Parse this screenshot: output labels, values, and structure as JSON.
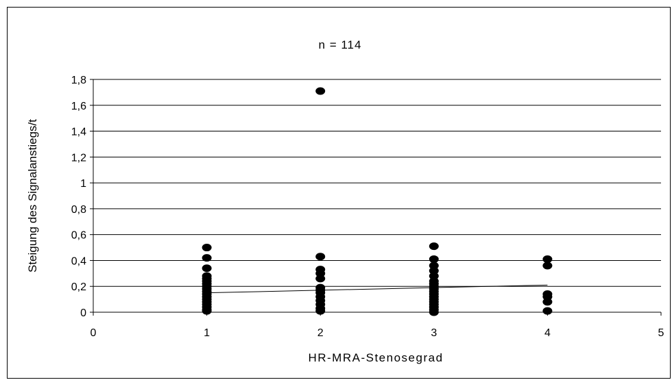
{
  "chart_data": {
    "type": "scatter",
    "title": "n = 114",
    "xlabel": "HR-MRA-Stenosegrad",
    "ylabel": "Steigung des Signalanstiegs/t",
    "xlim": [
      0,
      5
    ],
    "ylim": [
      0,
      1.8
    ],
    "x_ticks": [
      "0",
      "1",
      "2",
      "3",
      "4",
      "5"
    ],
    "y_ticks": [
      "0",
      "0,2",
      "0,4",
      "0,6",
      "0,8",
      "1",
      "1,2",
      "1,4",
      "1,6",
      "1,8"
    ],
    "grid": "horizontal",
    "legend": "none",
    "marker_color": "#000000",
    "points": [
      {
        "x": 1,
        "y": 0.5
      },
      {
        "x": 1,
        "y": 0.42
      },
      {
        "x": 1,
        "y": 0.34
      },
      {
        "x": 1,
        "y": 0.28
      },
      {
        "x": 1,
        "y": 0.26
      },
      {
        "x": 1,
        "y": 0.24
      },
      {
        "x": 1,
        "y": 0.22
      },
      {
        "x": 1,
        "y": 0.2
      },
      {
        "x": 1,
        "y": 0.18
      },
      {
        "x": 1,
        "y": 0.16
      },
      {
        "x": 1,
        "y": 0.14
      },
      {
        "x": 1,
        "y": 0.12
      },
      {
        "x": 1,
        "y": 0.1
      },
      {
        "x": 1,
        "y": 0.08
      },
      {
        "x": 1,
        "y": 0.06
      },
      {
        "x": 1,
        "y": 0.04
      },
      {
        "x": 1,
        "y": 0.02
      },
      {
        "x": 1,
        "y": 0.01
      },
      {
        "x": 2,
        "y": 1.71
      },
      {
        "x": 2,
        "y": 0.43
      },
      {
        "x": 2,
        "y": 0.33
      },
      {
        "x": 2,
        "y": 0.3
      },
      {
        "x": 2,
        "y": 0.26
      },
      {
        "x": 2,
        "y": 0.19
      },
      {
        "x": 2,
        "y": 0.17
      },
      {
        "x": 2,
        "y": 0.15
      },
      {
        "x": 2,
        "y": 0.12
      },
      {
        "x": 2,
        "y": 0.09
      },
      {
        "x": 2,
        "y": 0.06
      },
      {
        "x": 2,
        "y": 0.03
      },
      {
        "x": 2,
        "y": 0.01
      },
      {
        "x": 3,
        "y": 0.51
      },
      {
        "x": 3,
        "y": 0.41
      },
      {
        "x": 3,
        "y": 0.36
      },
      {
        "x": 3,
        "y": 0.32
      },
      {
        "x": 3,
        "y": 0.28
      },
      {
        "x": 3,
        "y": 0.24
      },
      {
        "x": 3,
        "y": 0.22
      },
      {
        "x": 3,
        "y": 0.2
      },
      {
        "x": 3,
        "y": 0.18
      },
      {
        "x": 3,
        "y": 0.16
      },
      {
        "x": 3,
        "y": 0.14
      },
      {
        "x": 3,
        "y": 0.12
      },
      {
        "x": 3,
        "y": 0.1
      },
      {
        "x": 3,
        "y": 0.08
      },
      {
        "x": 3,
        "y": 0.06
      },
      {
        "x": 3,
        "y": 0.04
      },
      {
        "x": 3,
        "y": 0.02
      },
      {
        "x": 3,
        "y": 0.0
      },
      {
        "x": 4,
        "y": 0.41
      },
      {
        "x": 4,
        "y": 0.36
      },
      {
        "x": 4,
        "y": 0.14
      },
      {
        "x": 4,
        "y": 0.12
      },
      {
        "x": 4,
        "y": 0.08
      },
      {
        "x": 4,
        "y": 0.01
      }
    ],
    "trendline": {
      "x": [
        1,
        4
      ],
      "y": [
        0.15,
        0.21
      ]
    }
  }
}
